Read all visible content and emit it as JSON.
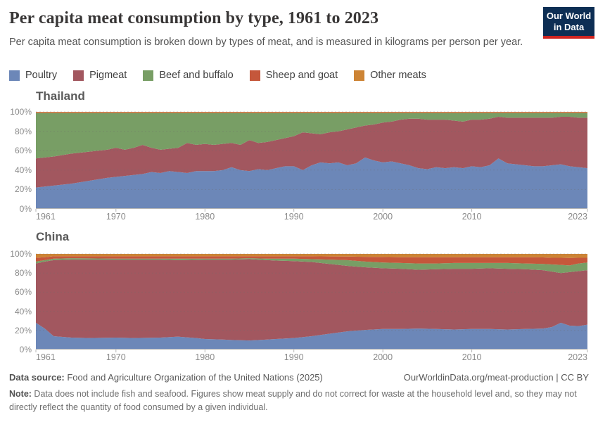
{
  "header": {
    "title": "Per capita meat consumption by type, 1961 to 2023",
    "subtitle": "Per capita meat consumption is broken down by types of meat, and is measured in kilograms per person per year.",
    "logo": {
      "line1": "Our World",
      "line2": "in Data",
      "bg_color": "#0d2e54",
      "accent_color": "#cf2420"
    }
  },
  "legend": {
    "items": [
      {
        "label": "Poultry",
        "color": "#6c87b8"
      },
      {
        "label": "Pigmeat",
        "color": "#a2575f"
      },
      {
        "label": "Beef and buffalo",
        "color": "#789e65"
      },
      {
        "label": "Sheep and goat",
        "color": "#c5573b"
      },
      {
        "label": "Other meats",
        "color": "#cd8435"
      }
    ]
  },
  "chart_data": [
    {
      "type": "area",
      "stacked": true,
      "percent_normalized": true,
      "title": "Thailand",
      "xlabel": "",
      "ylabel": "",
      "ylim": [
        0,
        100
      ],
      "grid": true,
      "yticks": [
        0,
        20,
        40,
        60,
        80,
        100
      ],
      "xticks": [
        1961,
        1970,
        1980,
        1990,
        2000,
        2010,
        2023
      ],
      "x": [
        1961,
        1963,
        1965,
        1967,
        1969,
        1970,
        1971,
        1972,
        1973,
        1974,
        1975,
        1976,
        1977,
        1978,
        1979,
        1980,
        1981,
        1982,
        1983,
        1984,
        1985,
        1986,
        1987,
        1988,
        1989,
        1990,
        1991,
        1992,
        1993,
        1994,
        1995,
        1996,
        1997,
        1998,
        1999,
        2000,
        2001,
        2002,
        2003,
        2004,
        2005,
        2006,
        2007,
        2008,
        2009,
        2010,
        2011,
        2012,
        2013,
        2014,
        2015,
        2016,
        2017,
        2018,
        2019,
        2020,
        2021,
        2022,
        2023
      ],
      "series": [
        {
          "name": "Poultry",
          "color": "#6c87b8",
          "values": [
            22,
            24,
            26,
            29,
            32,
            33,
            34,
            35,
            36,
            38,
            37,
            39,
            38,
            37,
            39,
            39,
            39,
            40,
            43,
            40,
            39,
            41,
            40,
            42,
            44,
            44,
            40,
            45,
            48,
            47,
            48,
            45,
            47,
            53,
            50,
            48,
            49,
            47,
            45,
            42,
            41,
            43,
            42,
            43,
            42,
            44,
            43,
            45,
            52,
            47,
            46,
            45,
            44,
            44,
            45,
            46,
            44,
            43,
            42
          ]
        },
        {
          "name": "Pigmeat",
          "color": "#a2575f",
          "values": [
            30,
            30,
            31,
            30,
            29,
            30,
            27,
            28,
            30,
            25,
            24,
            23,
            25,
            31,
            27,
            28,
            27,
            27,
            25,
            26,
            32,
            27,
            29,
            29,
            29,
            31,
            39,
            33,
            29,
            32,
            32,
            37,
            37,
            33,
            37,
            41,
            41,
            45,
            48,
            51,
            51,
            49,
            50,
            48,
            48,
            48,
            49,
            48,
            43,
            47,
            48,
            49,
            50,
            50,
            49,
            49,
            51,
            51,
            52
          ]
        },
        {
          "name": "Beef and buffalo",
          "color": "#789e65",
          "values": [
            46.8,
            44.8,
            41.8,
            39.8,
            37.8,
            35.8,
            37.8,
            35.8,
            32.8,
            35.8,
            37.8,
            36.8,
            35.8,
            30.8,
            32.8,
            31.8,
            32.8,
            31.8,
            30.8,
            32.8,
            27.8,
            30.8,
            29.8,
            27.8,
            25.8,
            23.8,
            19.8,
            20.8,
            21.8,
            19.8,
            18.8,
            16.8,
            14.8,
            12.8,
            11.8,
            9.8,
            8.8,
            6.8,
            5.8,
            5.8,
            6.8,
            6.8,
            6.8,
            7.8,
            8.8,
            6.8,
            6.8,
            5.8,
            3.8,
            4.8,
            4.8,
            4.8,
            4.8,
            4.8,
            4.8,
            3.8,
            3.8,
            4.8,
            4.8
          ]
        },
        {
          "name": "Sheep and goat",
          "color": "#c5573b",
          "values": 0.7
        },
        {
          "name": "Other meats",
          "color": "#cd8435",
          "values": 0.6
        }
      ]
    },
    {
      "type": "area",
      "stacked": true,
      "percent_normalized": true,
      "title": "China",
      "xlabel": "",
      "ylabel": "",
      "ylim": [
        0,
        100
      ],
      "grid": true,
      "yticks": [
        0,
        20,
        40,
        60,
        80,
        100
      ],
      "xticks": [
        1961,
        1970,
        1980,
        1990,
        2000,
        2010,
        2023
      ],
      "x": [
        1961,
        1962,
        1963,
        1965,
        1967,
        1970,
        1972,
        1975,
        1977,
        1979,
        1980,
        1982,
        1983,
        1985,
        1987,
        1988,
        1990,
        1992,
        1994,
        1996,
        1998,
        2000,
        2002,
        2004,
        2006,
        2008,
        2010,
        2012,
        2014,
        2016,
        2018,
        2019,
        2020,
        2021,
        2022,
        2023
      ],
      "series": [
        {
          "name": "Poultry",
          "color": "#6c87b8",
          "values": [
            28,
            22,
            14,
            12.5,
            12,
            12.5,
            12,
            12.5,
            13.5,
            12,
            11,
            10.5,
            10,
            9.5,
            10.5,
            11,
            12,
            14,
            16.5,
            19,
            20.5,
            21.5,
            21.5,
            22,
            21.5,
            21,
            21.5,
            21.5,
            21,
            21.5,
            22,
            23.5,
            28,
            25,
            24.5,
            26
          ]
        },
        {
          "name": "Pigmeat",
          "color": "#a2575f",
          "values": [
            62,
            70,
            79.5,
            81.5,
            82,
            81.5,
            82,
            81.5,
            80,
            81.8,
            83,
            83.5,
            84,
            85,
            83,
            82,
            80.5,
            77.5,
            73,
            68.5,
            65.5,
            63.5,
            63,
            61.5,
            62.5,
            63.5,
            63,
            63.5,
            63.5,
            62.5,
            61,
            58,
            52,
            56,
            57.5,
            57
          ]
        },
        {
          "name": "Beef and buffalo",
          "color": "#789e65",
          "values": [
            2,
            1.5,
            1.5,
            1.5,
            1.3,
            1,
            1,
            1,
            1.5,
            1.2,
            1,
            1,
            1,
            1,
            1.5,
            2,
            2.5,
            3,
            4.5,
            6,
            6,
            6,
            6,
            6.5,
            6,
            6,
            6,
            5.5,
            6,
            6,
            6.5,
            7.5,
            8.5,
            7,
            8,
            8
          ]
        },
        {
          "name": "Sheep and goat",
          "color": "#c5573b",
          "values": [
            4,
            3,
            2.5,
            2,
            2.2,
            2.5,
            2.5,
            2.5,
            2.5,
            2.5,
            2.5,
            2.5,
            2.5,
            2,
            2.5,
            2.5,
            2.5,
            3,
            3.3,
            3.7,
            5,
            5.8,
            6,
            6.5,
            6.5,
            6,
            6,
            6,
            6,
            6.5,
            6.8,
            7,
            7.5,
            7.8,
            6,
            5
          ]
        },
        {
          "name": "Other meats",
          "color": "#cd8435",
          "values": [
            4,
            3.5,
            2.5,
            2.5,
            2.5,
            2.5,
            2.5,
            2.5,
            2.5,
            2.5,
            2.5,
            2.5,
            2.5,
            2.5,
            2.5,
            2.5,
            2.5,
            2.5,
            2.7,
            2.8,
            3,
            3.2,
            3.5,
            3.5,
            3.5,
            3.5,
            3.5,
            3.5,
            3.5,
            3.5,
            3.7,
            4,
            4,
            4.2,
            4,
            4
          ]
        }
      ]
    }
  ],
  "footer": {
    "source_label": "Data source:",
    "source_text": " Food and Agriculture Organization of the United Nations (2025)",
    "link_text": "OurWorldinData.org/meat-production",
    "separator": " | ",
    "license_text": "CC BY",
    "note_label": "Note:",
    "note_text": " Data does not include fish and seafood. Figures show meat supply and do not correct for waste at the household level and, so they may not directly reflect the quantity of food consumed by a given individual."
  }
}
